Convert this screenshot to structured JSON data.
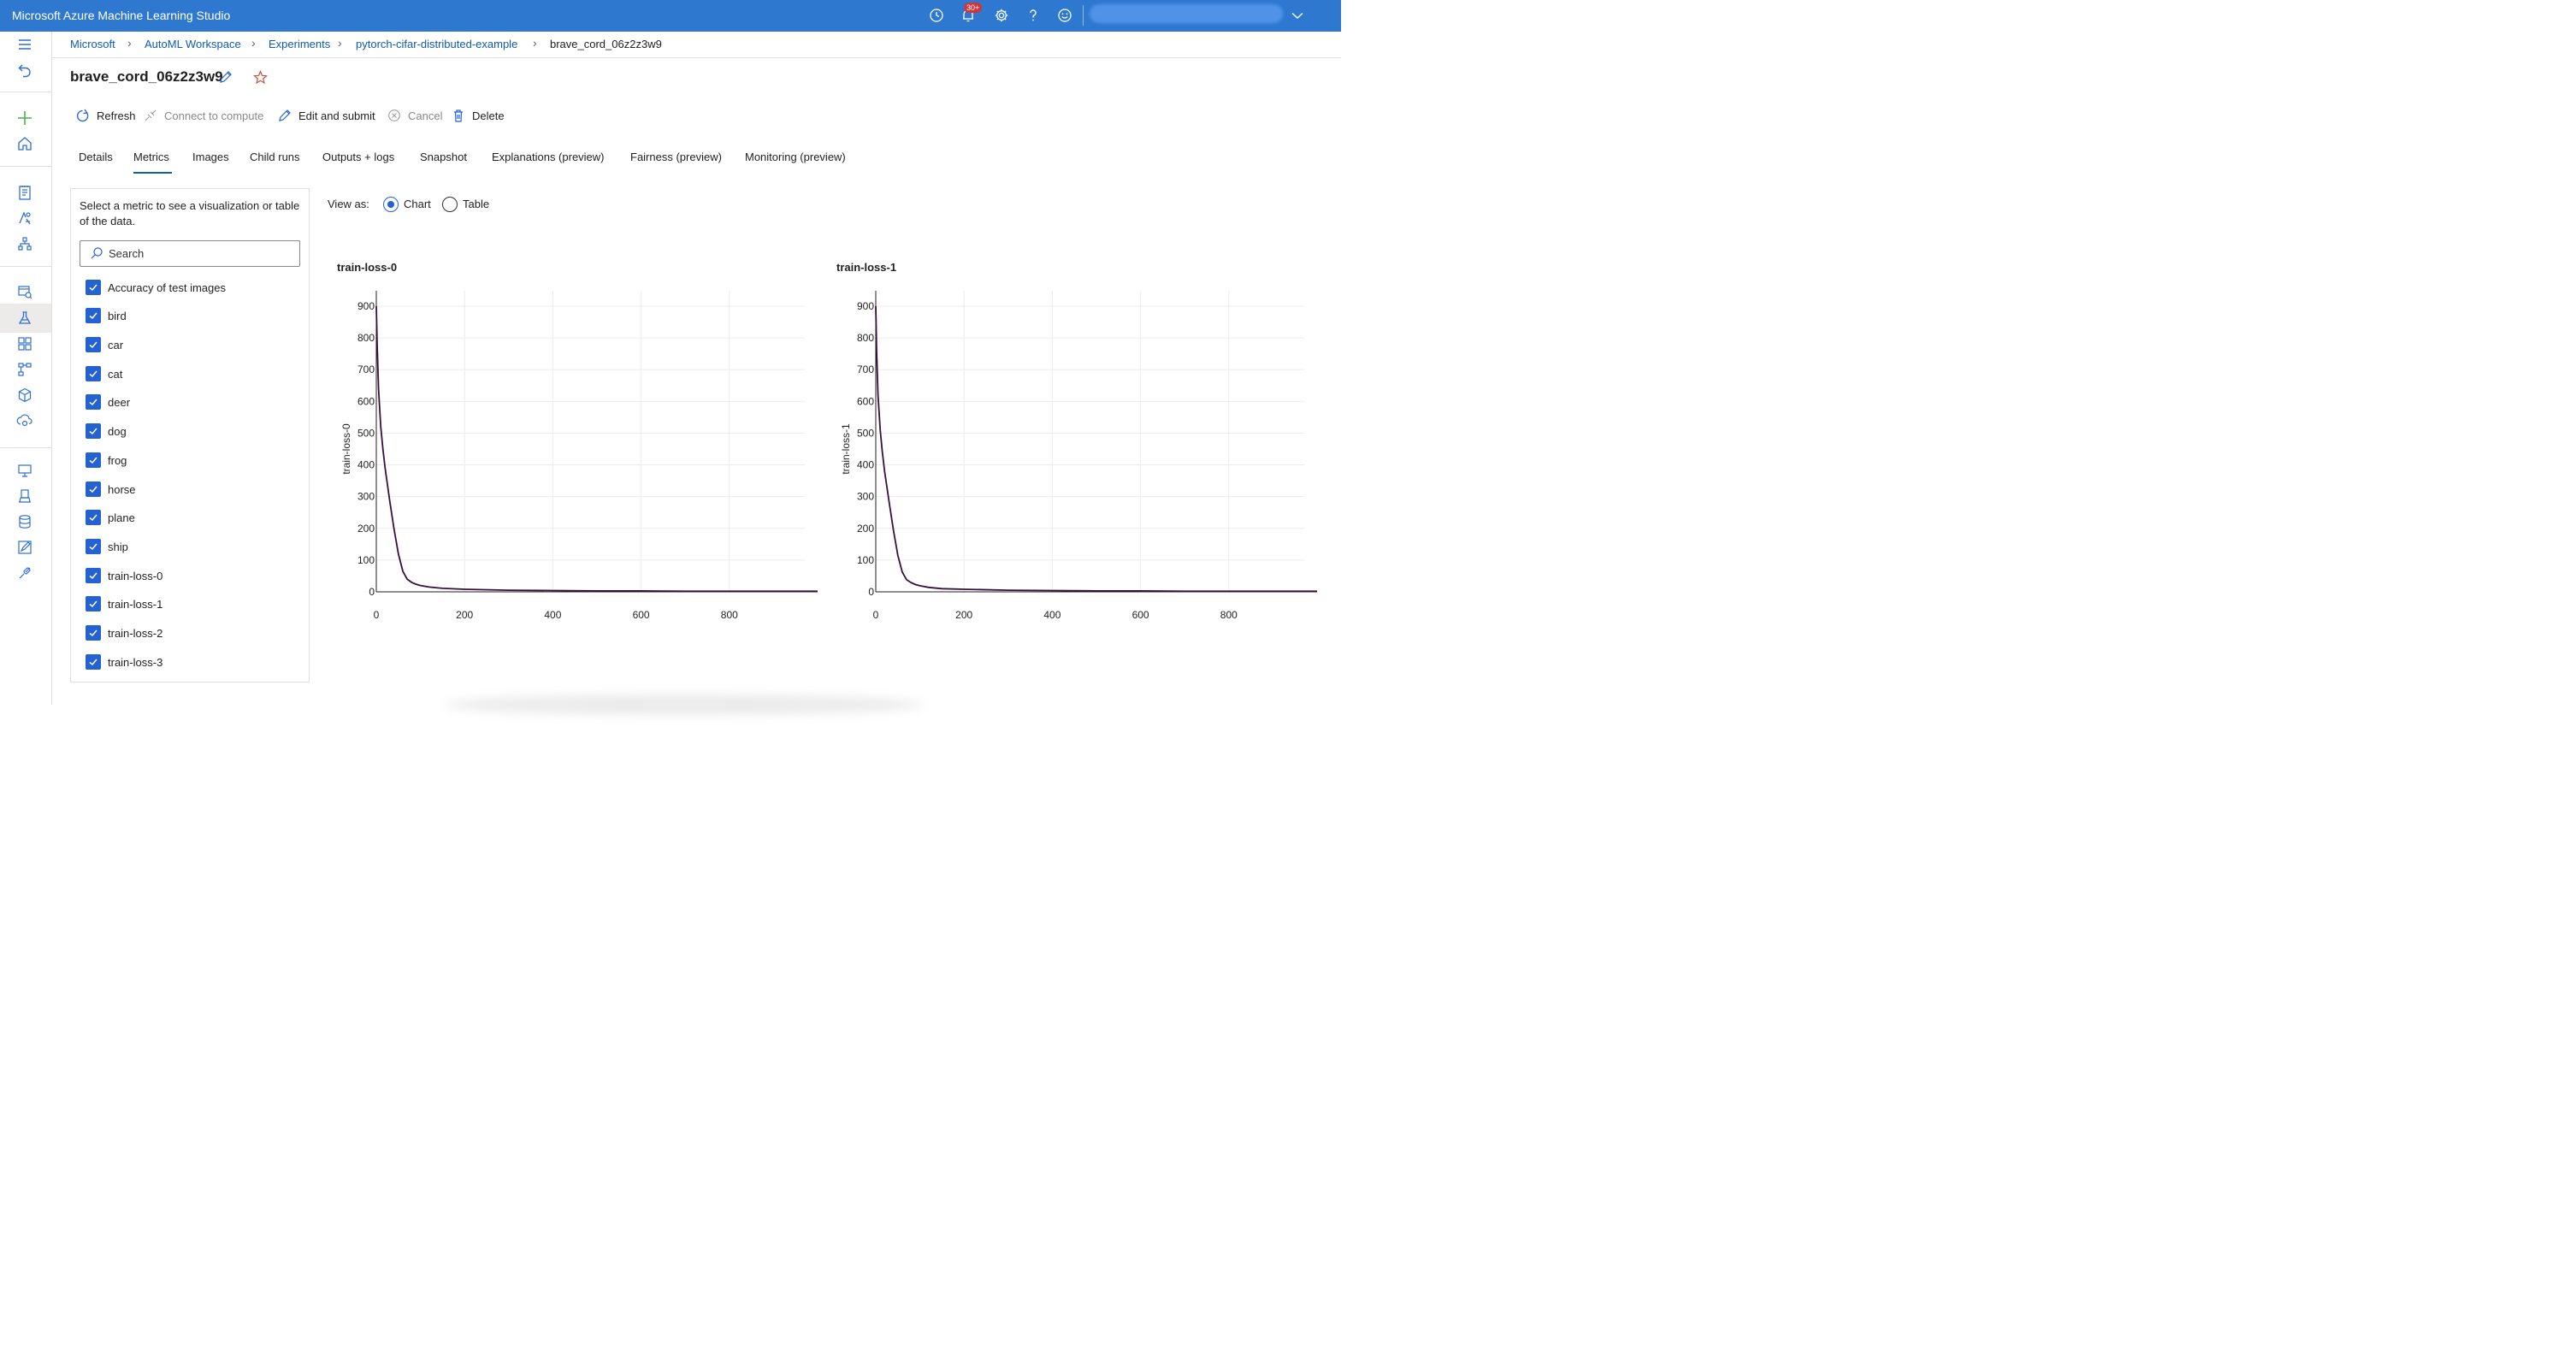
{
  "app": {
    "title": "Microsoft Azure Machine Learning Studio",
    "notification_count": "30+"
  },
  "topbar_icons": [
    "clock-icon",
    "bell-icon",
    "gear-icon",
    "help-icon",
    "smiley-icon",
    "chevron-down-icon"
  ],
  "leftnav_icons": [
    "hamburger-icon",
    "back-icon",
    "plus-icon",
    "home-icon",
    "notebook-icon",
    "automl-icon",
    "designer-icon",
    "datasets-icon",
    "experiments-icon",
    "pipelines-icon",
    "models-icon",
    "endpoints-icon",
    "compute-icon",
    "environments-icon",
    "datastores-icon",
    "labeling-icon",
    "linked-services-icon"
  ],
  "breadcrumb": [
    "Microsoft",
    "AutoML Workspace",
    "Experiments",
    "pytorch-cifar-distributed-example",
    "brave_cord_06z2z3w9"
  ],
  "run": {
    "title": "brave_cord_06z2z3w9"
  },
  "commands": {
    "refresh": "Refresh",
    "connect": "Connect to compute",
    "edit_submit": "Edit and submit",
    "cancel": "Cancel",
    "delete": "Delete"
  },
  "tabs": [
    "Details",
    "Metrics",
    "Images",
    "Child runs",
    "Outputs + logs",
    "Snapshot",
    "Explanations (preview)",
    "Fairness (preview)",
    "Monitoring (preview)"
  ],
  "active_tab": "Metrics",
  "metric_panel": {
    "help_text": "Select a metric to see a visualization or table of the data.",
    "search_placeholder": "Search",
    "metrics": [
      "Accuracy of test images",
      "bird",
      "car",
      "cat",
      "deer",
      "dog",
      "frog",
      "horse",
      "plane",
      "ship",
      "train-loss-0",
      "train-loss-1",
      "train-loss-2",
      "train-loss-3"
    ]
  },
  "view_as": {
    "label": "View as:",
    "chart": "Chart",
    "table": "Table",
    "selected": "Chart"
  },
  "colors": {
    "header": "#2f78d0",
    "accent": "#2461d1",
    "line": "#3b0f3d"
  },
  "chart_data": [
    {
      "type": "line",
      "title": "train-loss-0",
      "xlabel": "",
      "ylabel": "train-loss-0",
      "xlim": [
        0,
        1000
      ],
      "ylim": [
        0,
        900
      ],
      "xticks": [
        0,
        200,
        400,
        600,
        800
      ],
      "yticks": [
        0,
        100,
        200,
        300,
        400,
        500,
        600,
        700,
        800,
        900
      ],
      "grid": true,
      "series": [
        {
          "x": [
            0,
            2,
            5,
            10,
            15,
            20,
            30,
            40,
            50,
            60,
            70,
            80,
            90,
            100,
            120,
            150,
            200,
            300,
            400,
            500,
            600,
            700,
            800,
            900,
            1000
          ],
          "values": [
            900,
            780,
            640,
            520,
            450,
            390,
            290,
            200,
            120,
            65,
            40,
            30,
            24,
            20,
            15,
            11,
            8,
            5,
            4,
            3,
            3,
            2,
            2,
            2,
            2
          ]
        }
      ]
    },
    {
      "type": "line",
      "title": "train-loss-1",
      "xlabel": "",
      "ylabel": "train-loss-1",
      "xlim": [
        0,
        1000
      ],
      "ylim": [
        0,
        900
      ],
      "xticks": [
        0,
        200,
        400,
        600,
        800
      ],
      "yticks": [
        0,
        100,
        200,
        300,
        400,
        500,
        600,
        700,
        800,
        900
      ],
      "grid": true,
      "series": [
        {
          "x": [
            0,
            2,
            5,
            10,
            15,
            20,
            30,
            40,
            50,
            60,
            70,
            80,
            90,
            100,
            120,
            150,
            200,
            300,
            400,
            500,
            600,
            700,
            800,
            900,
            1000
          ],
          "values": [
            900,
            760,
            620,
            510,
            440,
            380,
            285,
            195,
            115,
            62,
            38,
            29,
            23,
            19,
            14,
            10,
            8,
            5,
            4,
            3,
            3,
            2,
            2,
            2,
            2
          ]
        }
      ]
    }
  ]
}
